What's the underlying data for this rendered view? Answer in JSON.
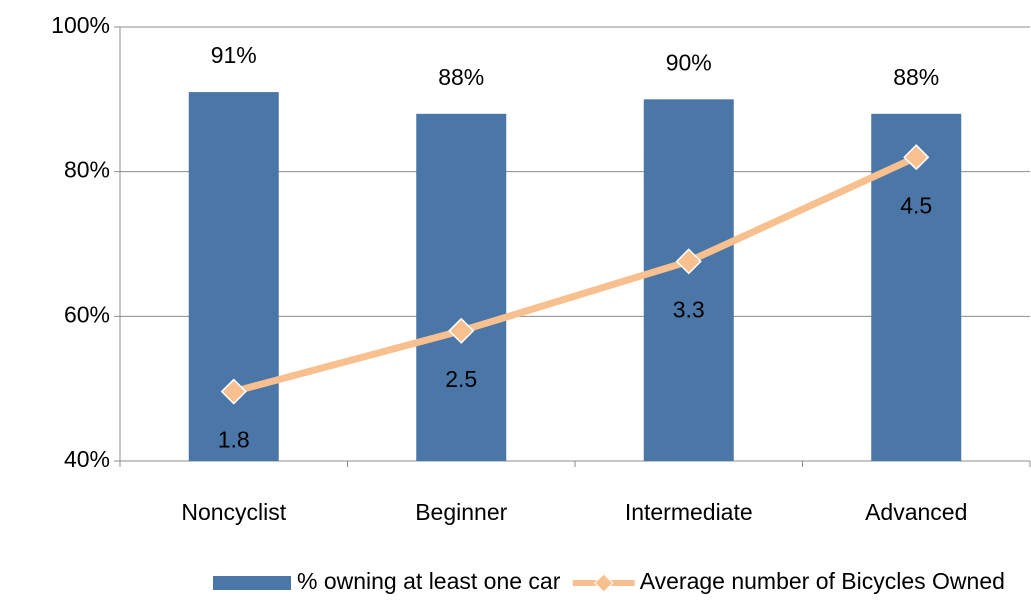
{
  "chart_data": {
    "type": "bar",
    "categories": [
      "Noncyclist",
      "Beginner",
      "Intermediate",
      "Advanced"
    ],
    "series": [
      {
        "name": "% owning at least one car",
        "type": "bar",
        "color": "#4a76a8",
        "values": [
          91,
          88,
          90,
          88
        ],
        "value_labels": [
          "91%",
          "88%",
          "90%",
          "88%"
        ]
      },
      {
        "name": "Average number of Bicycles Owned",
        "type": "line",
        "axis": "y2",
        "color": "#f9c08f",
        "values": [
          1.8,
          2.5,
          3.3,
          4.5
        ]
      }
    ],
    "ylim": [
      40,
      100
    ],
    "yticks": [
      {
        "value": 40,
        "label": "40%"
      },
      {
        "value": 60,
        "label": "60%"
      },
      {
        "value": 80,
        "label": "80%"
      },
      {
        "value": 100,
        "label": "100%"
      }
    ],
    "y2lim": [
      1,
      6
    ],
    "grid": true,
    "legend": "bottom"
  }
}
